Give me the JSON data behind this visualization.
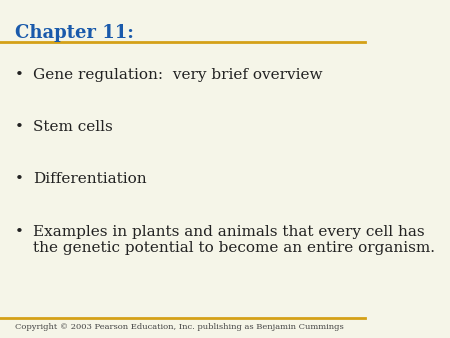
{
  "background_color": "#f5f5e8",
  "title": "Chapter 11:",
  "title_color": "#1a5aab",
  "title_fontsize": 13,
  "line_color": "#d4a017",
  "bullet_items": [
    "Gene regulation:  very brief overview",
    "Stem cells",
    "Differentiation",
    "Examples in plants and animals that every cell has\nthe genetic potential to become an entire organism."
  ],
  "bullet_color": "#222222",
  "bullet_fontsize": 11,
  "copyright_text": "Copyright © 2003 Pearson Education, Inc. publishing as Benjamin Cummings",
  "copyright_fontsize": 6,
  "copyright_color": "#444444"
}
